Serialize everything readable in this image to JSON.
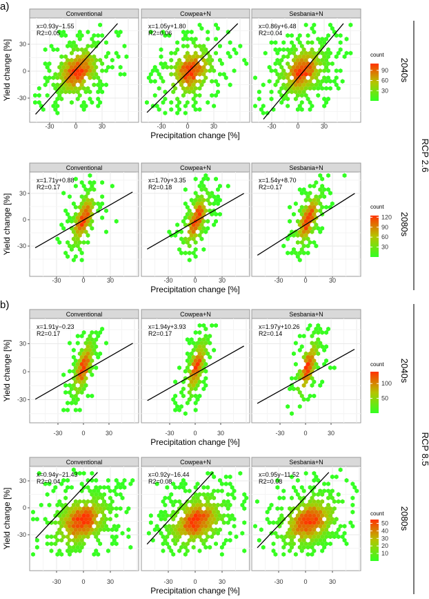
{
  "panel_labels": [
    "a)",
    "b)"
  ],
  "scenario_labels": [
    "RCP 2.6",
    "RCP 8.5"
  ],
  "colors": {
    "low": "#33ff22",
    "mid": "#b5c400",
    "high": "#ff3300",
    "strip": "#d9d9d9",
    "line": "#000000"
  },
  "chart_data": [
    {
      "type": "heatmap",
      "subtype": "hexbin",
      "group": "a)",
      "scenario": "RCP 2.6",
      "period": "2040s",
      "xlabel": "Precipitation change [%]",
      "ylabel": "Yield change [%]",
      "xticks": [
        "-30",
        "0",
        "30"
      ],
      "yticks": [
        "30",
        "0",
        "-30"
      ],
      "legend": {
        "title": "count",
        "ticks": [
          "90",
          "60",
          "30"
        ],
        "max": 110,
        "placement": "right"
      },
      "facets": [
        {
          "name": "Conventional",
          "equation": "x=0.93y−1.55",
          "r2": "R2=0.05",
          "slope": 0.93,
          "intercept": -1.55
        },
        {
          "name": "Cowpea+N",
          "equation": "x=1.05y+1.80",
          "r2": "R2=0.06",
          "slope": 1.05,
          "intercept": 1.8
        },
        {
          "name": "Sesbania+N",
          "equation": "x=0.86y+6.48",
          "r2": "R2=0.04",
          "slope": 0.86,
          "intercept": 6.48
        }
      ]
    },
    {
      "type": "heatmap",
      "subtype": "hexbin",
      "group": "a)",
      "scenario": "RCP 2.6",
      "period": "2080s",
      "xlabel": "Precipitation change [%]",
      "ylabel": "Yield change [%]",
      "xticks": [
        "-30",
        "0",
        "30"
      ],
      "yticks": [
        "30",
        "0",
        "-30"
      ],
      "legend": {
        "title": "count",
        "ticks": [
          "120",
          "90",
          "60",
          "30"
        ],
        "max": 125,
        "placement": "right"
      },
      "facets": [
        {
          "name": "Conventional",
          "equation": "x=1.71y+0.88",
          "r2": "R2=0.17",
          "slope": 1.71,
          "intercept": 0.88
        },
        {
          "name": "Cowpea+N",
          "equation": "x=1.70y+3.35",
          "r2": "R2=0.18",
          "slope": 1.7,
          "intercept": 3.35
        },
        {
          "name": "Sesbania+N",
          "equation": "x=1.54y+8.70",
          "r2": "R2=0.17",
          "slope": 1.54,
          "intercept": 8.7
        }
      ]
    },
    {
      "type": "heatmap",
      "subtype": "hexbin",
      "group": "b)",
      "scenario": "RCP 8.5",
      "period": "2040s",
      "xlabel": "Precipitation change [%]",
      "ylabel": "Yield change [%]",
      "xticks": [
        "-30",
        "0",
        "30"
      ],
      "yticks": [
        "30",
        "0",
        "-30"
      ],
      "legend": {
        "title": "count",
        "ticks": [
          "100",
          "50"
        ],
        "max": 140,
        "placement": "right"
      },
      "facets": [
        {
          "name": "Conventional",
          "equation": "x=1.91y−0.23",
          "r2": "R2=0.17",
          "slope": 1.91,
          "intercept": -0.23
        },
        {
          "name": "Cowpea+N",
          "equation": "x=1.94y+3.93",
          "r2": "R2=0.17",
          "slope": 1.94,
          "intercept": 3.93
        },
        {
          "name": "Sesbania+N",
          "equation": "x=1.97y+10.26",
          "r2": "R2=0.14",
          "slope": 1.97,
          "intercept": 10.26
        }
      ]
    },
    {
      "type": "heatmap",
      "subtype": "hexbin",
      "group": "b)",
      "scenario": "RCP 8.5",
      "period": "2080s",
      "xlabel": "Precipitation change [%]",
      "ylabel": "Yield change [%]",
      "xticks": [
        "-30",
        "0",
        "30"
      ],
      "yticks": [
        "30",
        "0",
        "-30"
      ],
      "legend": {
        "title": "count",
        "ticks": [
          "50",
          "40",
          "30",
          "20",
          "10"
        ],
        "max": 55,
        "placement": "right"
      },
      "facets": [
        {
          "name": "Conventional",
          "equation": "x=0.94y−21.43",
          "r2": "R2=0.04",
          "slope": 0.94,
          "intercept": -21.43
        },
        {
          "name": "Cowpea+N",
          "equation": "x=0.92y−16.44",
          "r2": "R2=0.08",
          "slope": 0.92,
          "intercept": -16.44
        },
        {
          "name": "Sesbania+N",
          "equation": "x=0.95y−11.52",
          "r2": "R2=0.08",
          "slope": 0.95,
          "intercept": -11.52
        }
      ]
    }
  ]
}
